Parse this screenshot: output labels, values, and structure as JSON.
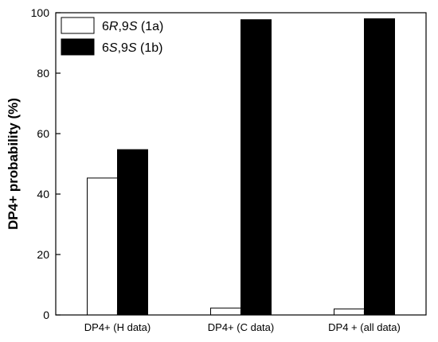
{
  "chart_data": {
    "type": "bar",
    "categories": [
      "DP4+ (H data)",
      "DP4+ (C data)",
      "DP4 + (all data)"
    ],
    "series": [
      {
        "name": "6R,9S (1a)",
        "name_parts": [
          {
            "t": "6",
            "i": false
          },
          {
            "t": "R",
            "i": true
          },
          {
            "t": ",9",
            "i": false
          },
          {
            "t": "S",
            "i": true
          },
          {
            "t": " (1a)",
            "i": false
          }
        ],
        "values": [
          45.3,
          2.3,
          2.0
        ],
        "color": "#ffffff"
      },
      {
        "name": "6S,9S (1b)",
        "name_parts": [
          {
            "t": "6",
            "i": false
          },
          {
            "t": "S",
            "i": true
          },
          {
            "t": ",9",
            "i": false
          },
          {
            "t": "S",
            "i": true
          },
          {
            "t": " (1b)",
            "i": false
          }
        ],
        "values": [
          54.7,
          97.7,
          98.0
        ],
        "color": "#000000"
      }
    ],
    "ylabel": "DP4+ probability (%)",
    "xlabel": "",
    "ylim": [
      0,
      100
    ],
    "yticks": [
      0,
      20,
      40,
      60,
      80,
      100
    ],
    "legend_position": "top-left",
    "grid": false
  }
}
